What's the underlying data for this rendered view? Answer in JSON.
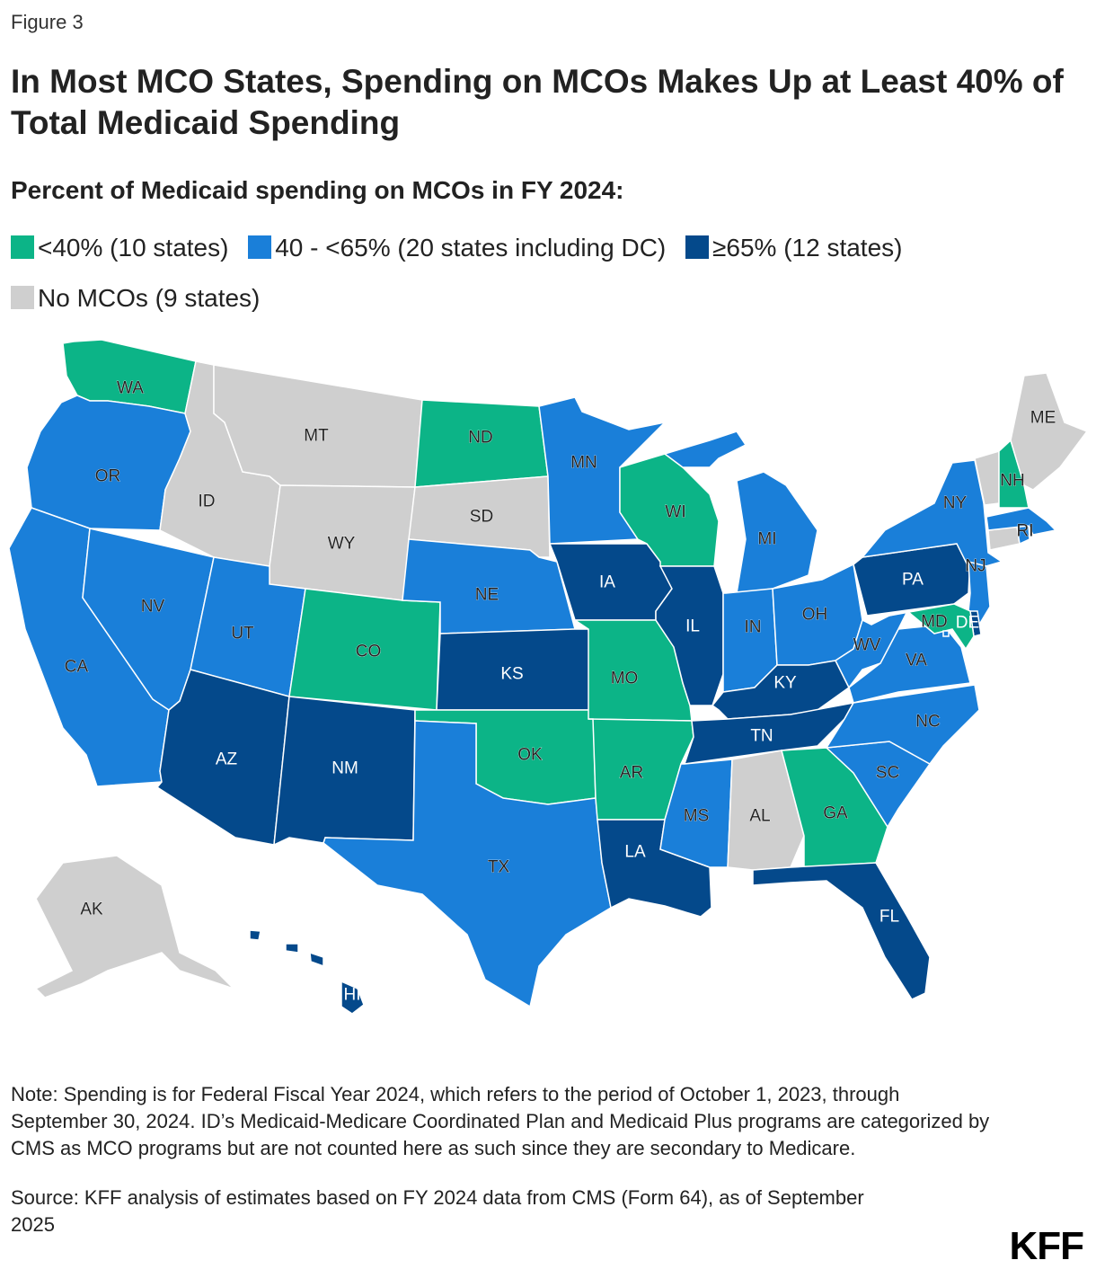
{
  "figure_label": "Figure 3",
  "title": "In Most MCO States, Spending on MCOs Makes Up at Least 40% of Total Medicaid Spending",
  "subtitle": "Percent of Medicaid spending on MCOs in FY 2024:",
  "colors": {
    "lt40": "#0cb487",
    "40to65": "#1a7fd9",
    "ge65": "#04498b",
    "none": "#cfcfcf"
  },
  "legend": [
    {
      "key": "lt40",
      "label": "<40% (10 states)"
    },
    {
      "key": "40to65",
      "label": "40 - <65% (20 states including DC)"
    },
    {
      "key": "ge65",
      "label": "≥65% (12 states)"
    },
    {
      "key": "none",
      "label": "No MCOs (9 states)"
    }
  ],
  "chart_data": {
    "type": "choropleth",
    "categories": [
      "lt40",
      "40to65",
      "ge65",
      "none"
    ],
    "states": [
      {
        "abbr": "WA",
        "category": "lt40"
      },
      {
        "abbr": "OR",
        "category": "40to65"
      },
      {
        "abbr": "CA",
        "category": "40to65"
      },
      {
        "abbr": "NV",
        "category": "40to65"
      },
      {
        "abbr": "ID",
        "category": "none"
      },
      {
        "abbr": "MT",
        "category": "none"
      },
      {
        "abbr": "WY",
        "category": "none"
      },
      {
        "abbr": "UT",
        "category": "40to65"
      },
      {
        "abbr": "AZ",
        "category": "ge65"
      },
      {
        "abbr": "CO",
        "category": "lt40"
      },
      {
        "abbr": "NM",
        "category": "ge65"
      },
      {
        "abbr": "ND",
        "category": "lt40"
      },
      {
        "abbr": "SD",
        "category": "none"
      },
      {
        "abbr": "NE",
        "category": "40to65"
      },
      {
        "abbr": "KS",
        "category": "ge65"
      },
      {
        "abbr": "OK",
        "category": "lt40"
      },
      {
        "abbr": "TX",
        "category": "40to65"
      },
      {
        "abbr": "MN",
        "category": "40to65"
      },
      {
        "abbr": "IA",
        "category": "ge65"
      },
      {
        "abbr": "MO",
        "category": "lt40"
      },
      {
        "abbr": "AR",
        "category": "lt40"
      },
      {
        "abbr": "LA",
        "category": "ge65"
      },
      {
        "abbr": "WI",
        "category": "lt40"
      },
      {
        "abbr": "IL",
        "category": "ge65"
      },
      {
        "abbr": "MI",
        "category": "40to65"
      },
      {
        "abbr": "IN",
        "category": "40to65"
      },
      {
        "abbr": "OH",
        "category": "40to65"
      },
      {
        "abbr": "KY",
        "category": "ge65"
      },
      {
        "abbr": "TN",
        "category": "ge65"
      },
      {
        "abbr": "MS",
        "category": "40to65"
      },
      {
        "abbr": "AL",
        "category": "none"
      },
      {
        "abbr": "GA",
        "category": "lt40"
      },
      {
        "abbr": "FL",
        "category": "ge65"
      },
      {
        "abbr": "SC",
        "category": "40to65"
      },
      {
        "abbr": "NC",
        "category": "40to65"
      },
      {
        "abbr": "VA",
        "category": "40to65"
      },
      {
        "abbr": "WV",
        "category": "40to65"
      },
      {
        "abbr": "PA",
        "category": "ge65"
      },
      {
        "abbr": "NY",
        "category": "40to65"
      },
      {
        "abbr": "NJ",
        "category": "40to65"
      },
      {
        "abbr": "DE",
        "category": "ge65"
      },
      {
        "abbr": "MD",
        "category": "lt40"
      },
      {
        "abbr": "DC",
        "category": "40to65"
      },
      {
        "abbr": "CT",
        "category": "none"
      },
      {
        "abbr": "RI",
        "category": "40to65"
      },
      {
        "abbr": "MA",
        "category": "40to65"
      },
      {
        "abbr": "VT",
        "category": "none"
      },
      {
        "abbr": "NH",
        "category": "lt40"
      },
      {
        "abbr": "ME",
        "category": "none"
      },
      {
        "abbr": "AK",
        "category": "none"
      },
      {
        "abbr": "HI",
        "category": "ge65"
      }
    ]
  },
  "note": "Note: Spending is for Federal Fiscal Year 2024, which refers to the period of October 1, 2023, through September 30, 2024. ID’s Medicaid-Medicare Coordinated Plan and Medicaid Plus programs are categorized by CMS as MCO programs but are not counted here as such since they are secondary to Medicare.",
  "source": "Source: KFF analysis of estimates based on FY 2024 data from CMS (Form 64), as of September 2025",
  "logo_text": "KFF"
}
